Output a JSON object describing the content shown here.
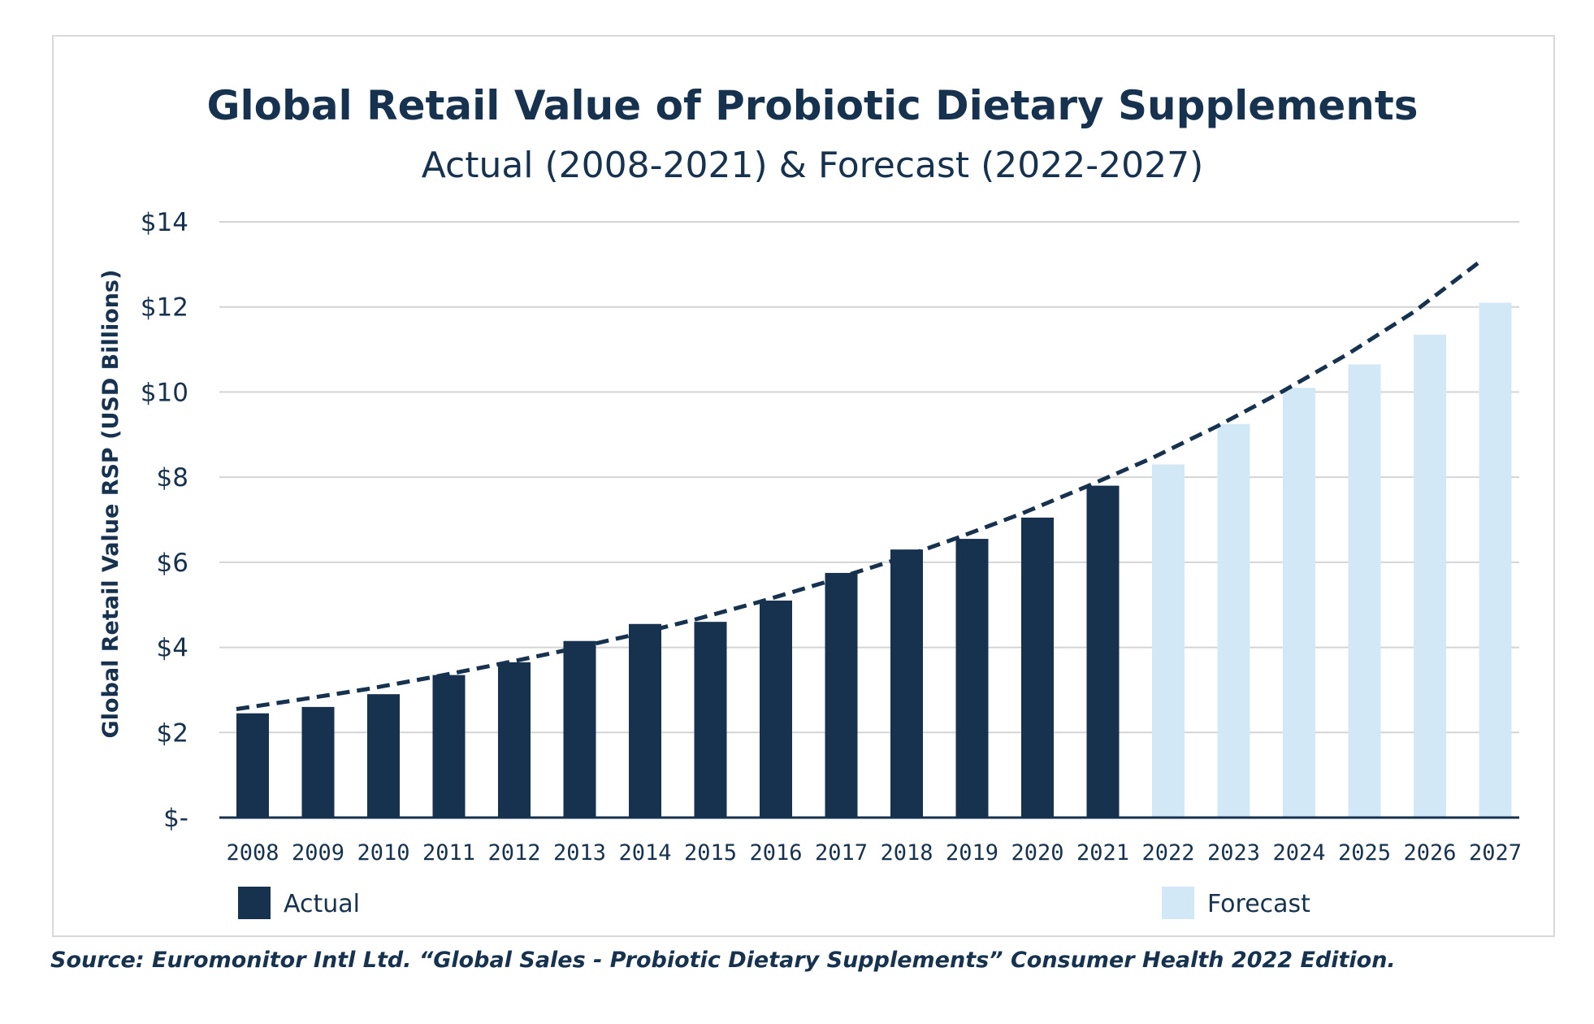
{
  "chart_data": {
    "type": "bar",
    "title": "Global Retail Value of Probiotic Dietary Supplements",
    "subtitle": "Actual (2008-2021) & Forecast (2022-2027)",
    "ylabel": "Global Retail Value RSP (USD Billions)",
    "xlabel": "",
    "ylim": [
      0,
      14
    ],
    "yticks": [
      0,
      2,
      4,
      6,
      8,
      10,
      12,
      14
    ],
    "ytick_labels": [
      "$-",
      "$2",
      "$4",
      "$6",
      "$8",
      "$10",
      "$12",
      "$14"
    ],
    "grid": true,
    "categories": [
      "2008",
      "2009",
      "2010",
      "2011",
      "2012",
      "2013",
      "2014",
      "2015",
      "2016",
      "2017",
      "2018",
      "2019",
      "2020",
      "2021",
      "2022",
      "2023",
      "2024",
      "2025",
      "2026",
      "2027"
    ],
    "values": [
      2.45,
      2.6,
      2.9,
      3.35,
      3.65,
      4.15,
      4.55,
      4.6,
      5.1,
      5.75,
      6.3,
      6.55,
      7.05,
      7.8,
      8.3,
      9.25,
      10.1,
      10.65,
      11.35,
      12.1
    ],
    "series": [
      {
        "name": "Actual",
        "color": "#17324f",
        "categories": [
          "2008",
          "2009",
          "2010",
          "2011",
          "2012",
          "2013",
          "2014",
          "2015",
          "2016",
          "2017",
          "2018",
          "2019",
          "2020",
          "2021"
        ]
      },
      {
        "name": "Forecast",
        "color": "#d3e8f7",
        "categories": [
          "2022",
          "2023",
          "2024",
          "2025",
          "2026",
          "2027"
        ]
      }
    ],
    "trendline": {
      "style": "dashed",
      "color": "#17324f",
      "values": [
        2.55,
        2.78,
        3.02,
        3.3,
        3.6,
        3.92,
        4.27,
        4.65,
        5.07,
        5.53,
        6.02,
        6.56,
        7.14,
        7.78,
        8.45,
        9.2,
        10.02,
        10.9,
        11.88,
        13.05
      ]
    },
    "legend": {
      "placement": "bottom",
      "items": [
        "Actual",
        "Forecast"
      ]
    }
  },
  "source": "Source: Euromonitor Intl Ltd. “Global Sales - Probiotic Dietary Supplements” Consumer Health 2022 Edition."
}
